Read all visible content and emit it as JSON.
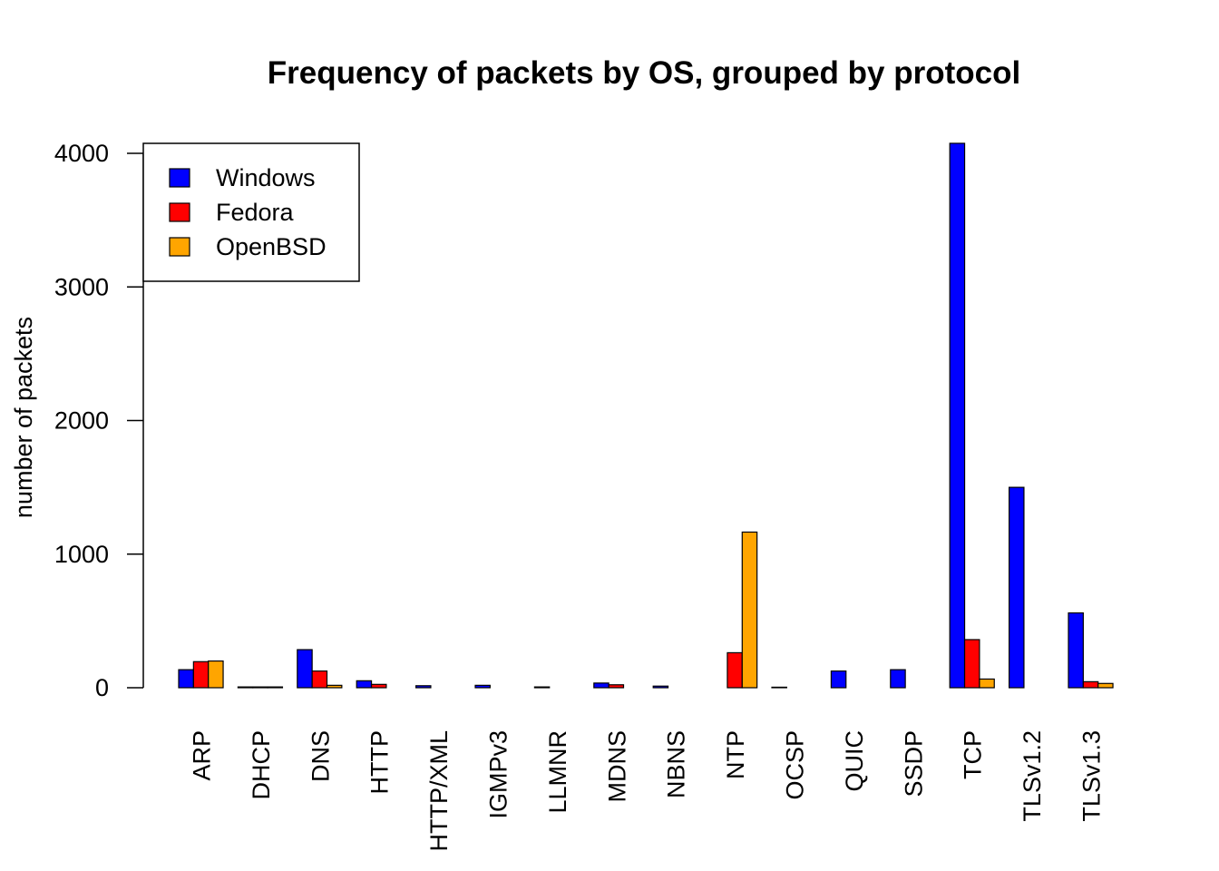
{
  "chart_data": {
    "type": "bar",
    "title": "Frequency of packets by OS, grouped by protocol",
    "xlabel": "",
    "ylabel": "number of packets",
    "ylim": [
      0,
      4100
    ],
    "yticks": [
      0,
      1000,
      2000,
      3000,
      4000
    ],
    "grid": false,
    "legend_position": "top-left",
    "categories": [
      "ARP",
      "DHCP",
      "DNS",
      "HTTP",
      "HTTP/XML",
      "IGMPv3",
      "LLMNR",
      "MDNS",
      "NBNS",
      "NTP",
      "OCSP",
      "QUIC",
      "SSDP",
      "TCP",
      "TLSv1.2",
      "TLSv1.3"
    ],
    "series": [
      {
        "name": "Windows",
        "color": "#0000ff",
        "values": [
          135,
          6,
          285,
          52,
          15,
          18,
          6,
          35,
          12,
          0,
          4,
          125,
          135,
          4075,
          1500,
          560
        ]
      },
      {
        "name": "Fedora",
        "color": "#ff0000",
        "values": [
          195,
          6,
          125,
          25,
          0,
          0,
          0,
          22,
          0,
          262,
          0,
          0,
          0,
          360,
          0,
          45
        ]
      },
      {
        "name": "OpenBSD",
        "color": "#ffa500",
        "values": [
          200,
          6,
          18,
          0,
          0,
          0,
          0,
          0,
          0,
          1165,
          0,
          0,
          0,
          65,
          0,
          32
        ]
      }
    ]
  }
}
